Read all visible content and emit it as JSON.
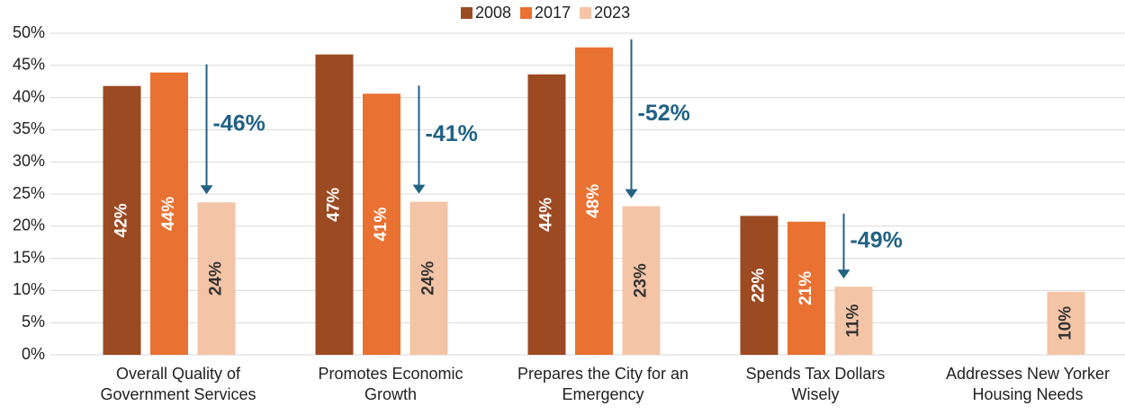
{
  "chart_data": {
    "type": "bar",
    "categories": [
      "Overall Quality of\nGovernment Services",
      "Promotes Economic\nGrowth",
      "Prepares the City for an\nEmergency",
      "Spends Tax Dollars\nWisely",
      "Addresses New Yorker\nHousing Needs"
    ],
    "series": [
      {
        "name": "2008",
        "color": "#9c4a22",
        "label_color": "#ffffff",
        "values": [
          41.8,
          46.7,
          43.6,
          21.6,
          null
        ],
        "value_labels": [
          "42%",
          "47%",
          "44%",
          "22%",
          null
        ]
      },
      {
        "name": "2017",
        "color": "#e97132",
        "label_color": "#ffffff",
        "values": [
          43.9,
          40.6,
          47.8,
          20.7,
          null
        ],
        "value_labels": [
          "44%",
          "41%",
          "48%",
          "21%",
          null
        ]
      },
      {
        "name": "2023",
        "color": "#f4c4a6",
        "label_color": "#333333",
        "values": [
          23.7,
          23.8,
          23.1,
          10.6,
          9.8
        ],
        "value_labels": [
          "24%",
          "24%",
          "23%",
          "11%",
          "10%"
        ]
      }
    ],
    "annotations": [
      {
        "text": "-46%",
        "category": 0
      },
      {
        "text": "-41%",
        "category": 1
      },
      {
        "text": "-52%",
        "category": 2
      },
      {
        "text": "-49%",
        "category": 3
      }
    ],
    "annotation_color": "#226284",
    "ylim": [
      0,
      50
    ],
    "yticks": [
      {
        "value": 0,
        "label": "0%"
      },
      {
        "value": 5,
        "label": "5%"
      },
      {
        "value": 10,
        "label": "10%"
      },
      {
        "value": 15,
        "label": "15%"
      },
      {
        "value": 20,
        "label": "20%"
      },
      {
        "value": 25,
        "label": "25%"
      },
      {
        "value": 30,
        "label": "30%"
      },
      {
        "value": 35,
        "label": "35%"
      },
      {
        "value": 40,
        "label": "40%"
      },
      {
        "value": 45,
        "label": "45%"
      },
      {
        "value": 50,
        "label": "50%"
      }
    ],
    "grid": true,
    "legend": "top"
  }
}
